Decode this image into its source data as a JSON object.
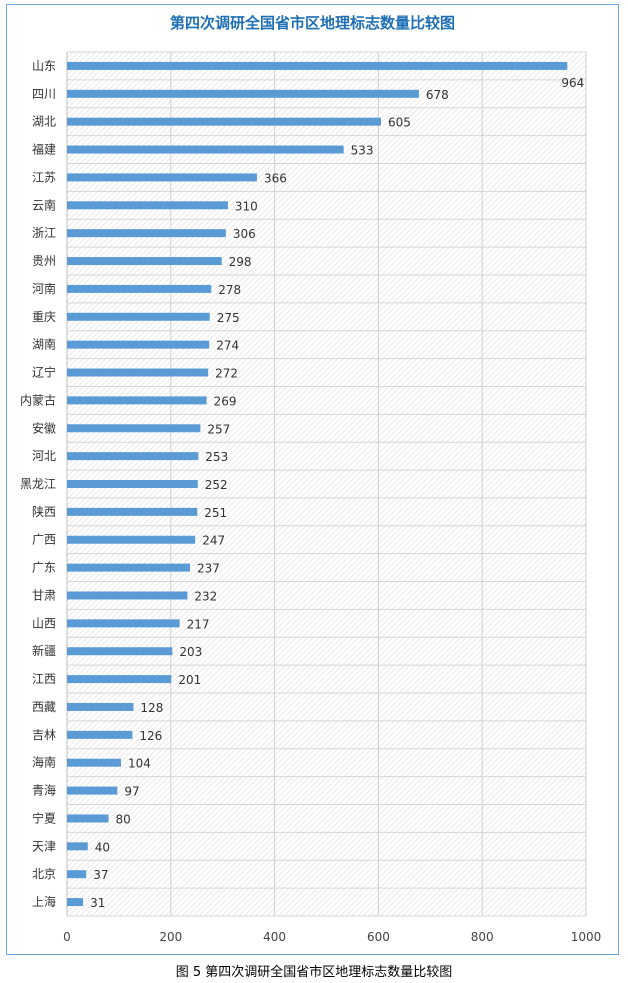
{
  "caption": "图 5 第四次调研全国省市区地理标志数量比较图",
  "chart_data": {
    "type": "bar",
    "orientation": "horizontal",
    "title": "第四次调研全国省市区地理标志数量比较图",
    "xlabel": "",
    "ylabel": "",
    "xlim": [
      0,
      1000
    ],
    "xticks": [
      0,
      200,
      400,
      600,
      800,
      1000
    ],
    "bar_color": "#5b9bd5",
    "grid": true,
    "legend": "none",
    "categories": [
      "山东",
      "四川",
      "湖北",
      "福建",
      "江苏",
      "云南",
      "浙江",
      "贵州",
      "河南",
      "重庆",
      "湖南",
      "辽宁",
      "内蒙古",
      "安徽",
      "河北",
      "黑龙江",
      "陕西",
      "广西",
      "广东",
      "甘肃",
      "山西",
      "新疆",
      "江西",
      "西藏",
      "吉林",
      "海南",
      "青海",
      "宁夏",
      "天津",
      "北京",
      "上海"
    ],
    "values": [
      964,
      678,
      605,
      533,
      366,
      310,
      306,
      298,
      278,
      275,
      274,
      272,
      269,
      257,
      253,
      252,
      251,
      247,
      237,
      232,
      217,
      203,
      201,
      128,
      126,
      104,
      97,
      80,
      40,
      37,
      31
    ]
  }
}
